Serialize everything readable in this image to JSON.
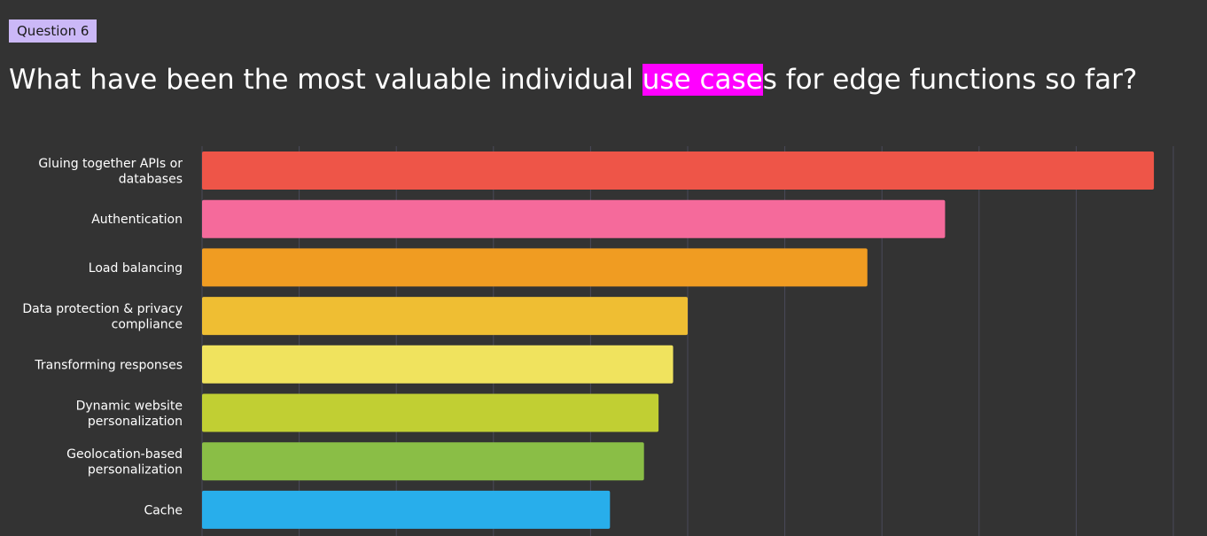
{
  "question_label": "Question 6",
  "title_parts": {
    "before": "What have been the most valuable individual ",
    "highlight": "use case",
    "after": "s for edge functions so far?"
  },
  "chart_data": {
    "type": "bar",
    "orientation": "horizontal",
    "categories": [
      [
        "Gluing together APIs or",
        "databases"
      ],
      [
        "Authentication"
      ],
      [
        "Load balancing"
      ],
      [
        "Data protection & privacy",
        "compliance"
      ],
      [
        "Transforming responses"
      ],
      [
        "Dynamic website",
        "personalization"
      ],
      [
        "Geolocation-based",
        "personalization"
      ],
      [
        "Cache"
      ]
    ],
    "values": [
      98,
      76.5,
      68.5,
      50,
      48.5,
      47,
      45.5,
      42
    ],
    "xlim": [
      0,
      100
    ],
    "grid": true,
    "colors": [
      "#ee5548",
      "#f56a9b",
      "#f09c22",
      "#efbe33",
      "#f0e35e",
      "#c1cf33",
      "#8abe46",
      "#28aeeb"
    ],
    "grid_color": "#4a4a5a"
  }
}
